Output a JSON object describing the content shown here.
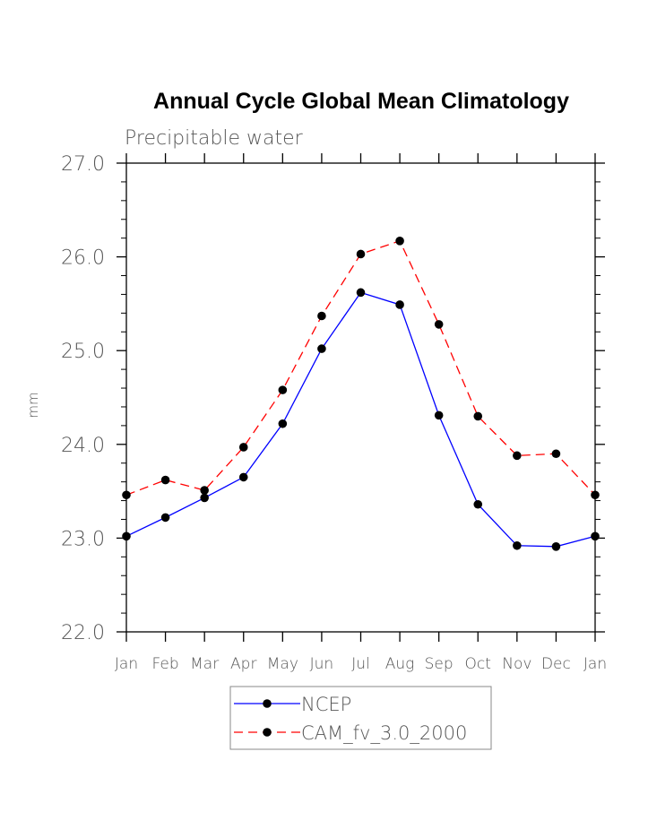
{
  "chart_data": {
    "type": "line",
    "title": "Annual Cycle Global Mean Climatology",
    "subtitle": "Precipitable water",
    "xlabel": "",
    "ylabel": "mm",
    "categories": [
      "Jan",
      "Feb",
      "Mar",
      "Apr",
      "May",
      "Jun",
      "Jul",
      "Aug",
      "Sep",
      "Oct",
      "Nov",
      "Dec",
      "Jan"
    ],
    "ylim": [
      22.0,
      27.0
    ],
    "yticks": [
      "22.0",
      "23.0",
      "24.0",
      "25.0",
      "26.0",
      "27.0"
    ],
    "y_minor_step": 0.2,
    "grid": false,
    "legend_position": "bottom-center",
    "series": [
      {
        "name": "NCEP",
        "color": "#0000ff",
        "style": "solid",
        "marker": "filled-circle",
        "values": [
          23.02,
          23.22,
          23.43,
          23.65,
          24.22,
          25.02,
          25.62,
          25.49,
          24.31,
          23.36,
          22.92,
          22.91,
          23.02
        ]
      },
      {
        "name": "CAM_fv_3.0_2000",
        "color": "#ff0000",
        "style": "dashed",
        "marker": "filled-circle",
        "values": [
          23.46,
          23.62,
          23.51,
          23.97,
          24.58,
          25.37,
          26.03,
          26.17,
          25.28,
          24.3,
          23.88,
          23.9,
          23.46
        ]
      }
    ]
  }
}
